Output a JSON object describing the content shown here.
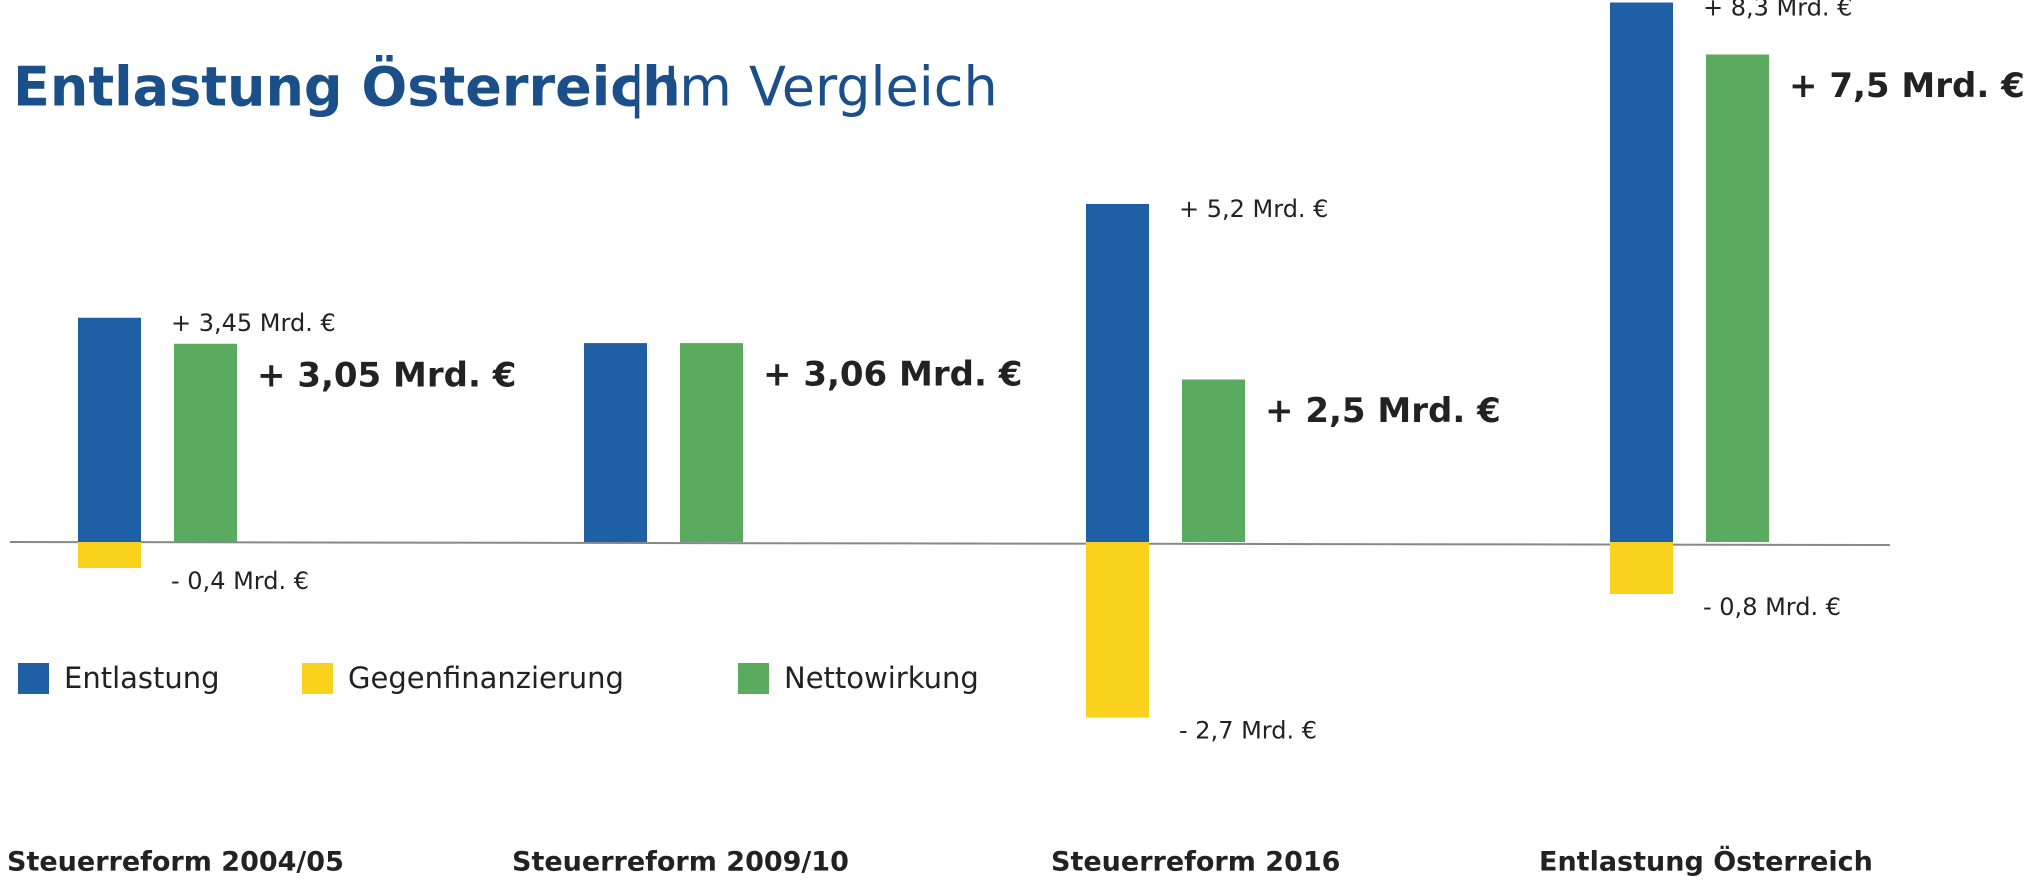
{
  "chart_data": {
    "type": "bar",
    "title": "Entlastung Österreich",
    "subtitle": "| Im Vergleich",
    "categories": [
      "Steuerreform 2004/05",
      "Steuerreform 2009/10",
      "Steuerreform 2016",
      "Entlastung Österreich"
    ],
    "series": [
      {
        "name": "Entlastung",
        "color": "#1f5fa6",
        "values": [
          3.45,
          3.06,
          5.2,
          8.3
        ],
        "value_labels": [
          "+ 3,45 Mrd. €",
          null,
          "+ 5,2 Mrd. €",
          "+ 8,3 Mrd. €"
        ]
      },
      {
        "name": "Gegenfinanzierung",
        "color": "#f8d21c",
        "values": [
          -0.4,
          null,
          -2.7,
          -0.8
        ],
        "value_labels": [
          "- 0,4 Mrd. €",
          null,
          "- 2,7 Mrd. €",
          "- 0,8 Mrd. €"
        ]
      },
      {
        "name": "Nettowirkung",
        "color": "#5aaa5f",
        "values": [
          3.05,
          3.06,
          2.5,
          7.5
        ],
        "value_labels": [
          "+ 3,05 Mrd. €",
          "+ 3,06 Mrd. €",
          "+ 2,5 Mrd. €",
          "+ 7,5 Mrd. €"
        ]
      }
    ],
    "legend": "left"
  }
}
